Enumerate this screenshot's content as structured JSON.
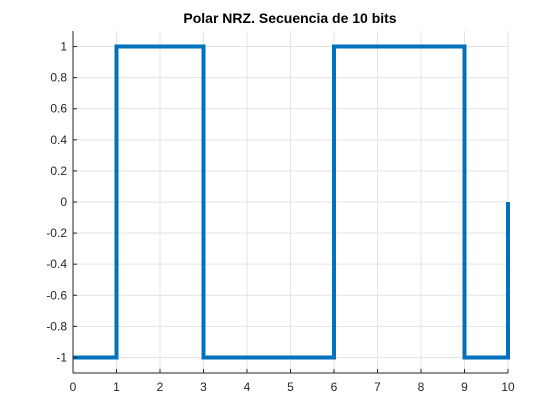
{
  "chart_data": {
    "type": "line",
    "title": "Polar NRZ. Secuencia de 10 bits",
    "xlabel": "",
    "ylabel": "",
    "xlim": [
      0,
      10
    ],
    "ylim": [
      -1.1,
      1.1
    ],
    "x_ticks": [
      0,
      1,
      2,
      3,
      4,
      5,
      6,
      7,
      8,
      9,
      10
    ],
    "x_tick_labels": [
      "0",
      "1",
      "2",
      "3",
      "4",
      "5",
      "6",
      "7",
      "8",
      "9",
      "10"
    ],
    "y_ticks": [
      1,
      0.8,
      0.6,
      0.4,
      0.2,
      0,
      -0.2,
      -0.4,
      -0.6,
      -0.8,
      -1
    ],
    "y_tick_labels": [
      "1",
      "0.8",
      "0.6",
      "0.4",
      "0.2",
      "0",
      "-0.2",
      "-0.4",
      "-0.6",
      "-0.8",
      "-1"
    ],
    "grid": true,
    "series": [
      {
        "color": "#0072bd",
        "x": [
          0,
          1,
          1,
          3,
          3,
          6,
          6,
          9,
          9,
          10,
          10
        ],
        "y": [
          -1,
          -1,
          1,
          1,
          -1,
          -1,
          1,
          1,
          -1,
          -1,
          0
        ]
      }
    ]
  }
}
